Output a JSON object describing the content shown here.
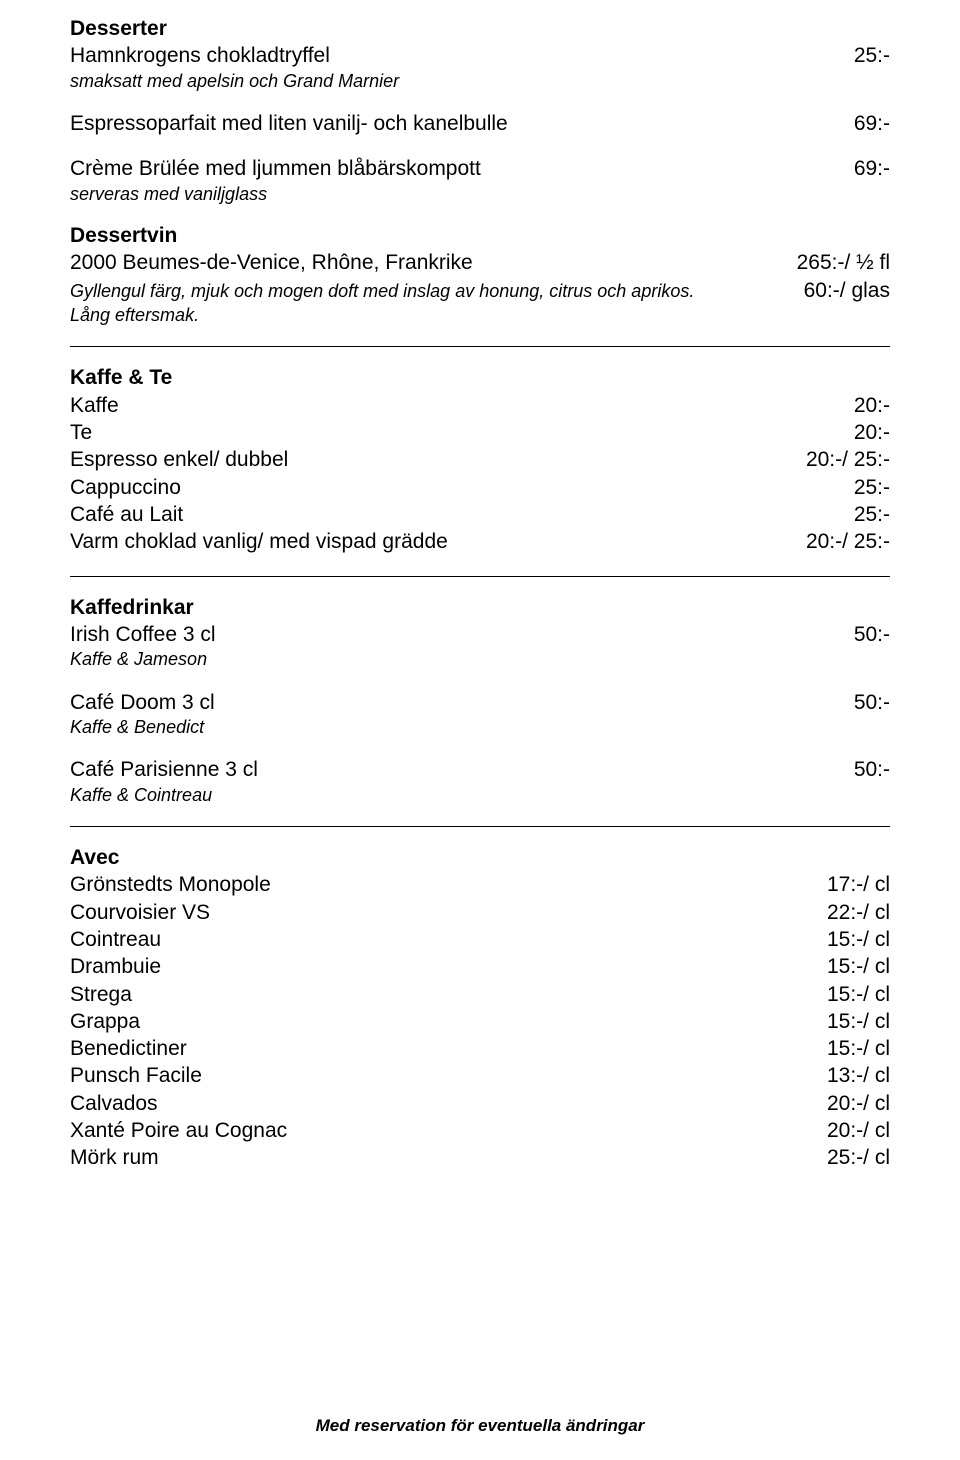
{
  "desserter": {
    "heading": "Desserter",
    "items": [
      {
        "name": "Hamnkrogens chokladtryffel",
        "price": "25:-",
        "sub": "smaksatt med apelsin och Grand Marnier"
      },
      {
        "name": "Espressoparfait med liten vanilj- och kanelbulle",
        "price": "69:-"
      },
      {
        "name": "Crème Brülée med ljummen blåbärskompott",
        "price": "69:-",
        "sub": "serveras med vaniljglass"
      }
    ]
  },
  "dessertvin": {
    "heading": "Dessertvin",
    "name": "2000 Beumes-de-Venice, Rhône, Frankrike",
    "price1": "265:-/ ½ fl",
    "sub1": "Gyllengul färg, mjuk och mogen doft med inslag av honung, citrus och aprikos.",
    "price2": "60:-/ glas",
    "sub2": "Lång eftersmak."
  },
  "kaffe_te": {
    "heading": "Kaffe & Te",
    "items": [
      {
        "name": "Kaffe",
        "price": "20:-"
      },
      {
        "name": "Te",
        "price": "20:-"
      },
      {
        "name": "Espresso enkel/ dubbel",
        "price": "20:-/ 25:-"
      },
      {
        "name": "Cappuccino",
        "price": "25:-"
      },
      {
        "name": "Café au Lait",
        "price": "25:-"
      },
      {
        "name": "Varm choklad vanlig/ med vispad grädde",
        "price": "20:-/ 25:-"
      }
    ]
  },
  "kaffedrinkar": {
    "heading": "Kaffedrinkar",
    "items": [
      {
        "name": "Irish Coffee 3 cl",
        "price": "50:-",
        "sub": "Kaffe & Jameson"
      },
      {
        "name": "Café Doom 3 cl",
        "price": "50:-",
        "sub": "Kaffe & Benedict"
      },
      {
        "name": "Café Parisienne 3 cl",
        "price": "50:-",
        "sub": "Kaffe & Cointreau"
      }
    ]
  },
  "avec": {
    "heading": "Avec",
    "items": [
      {
        "name": "Grönstedts Monopole",
        "price": "17:-/ cl"
      },
      {
        "name": "Courvoisier VS",
        "price": "22:-/ cl"
      },
      {
        "name": "Cointreau",
        "price": "15:-/ cl"
      },
      {
        "name": "Drambuie",
        "price": "15:-/ cl"
      },
      {
        "name": "Strega",
        "price": "15:-/ cl"
      },
      {
        "name": "Grappa",
        "price": "15:-/ cl"
      },
      {
        "name": "Benedictiner",
        "price": "15:-/ cl"
      },
      {
        "name": "Punsch Facile",
        "price": "13:-/ cl"
      },
      {
        "name": "Calvados",
        "price": "20:-/ cl"
      },
      {
        "name": "Xanté Poire au Cognac",
        "price": "20:-/ cl"
      },
      {
        "name": "Mörk rum",
        "price": "25:-/ cl"
      }
    ]
  },
  "footer": "Med reservation för eventuella ändringar"
}
